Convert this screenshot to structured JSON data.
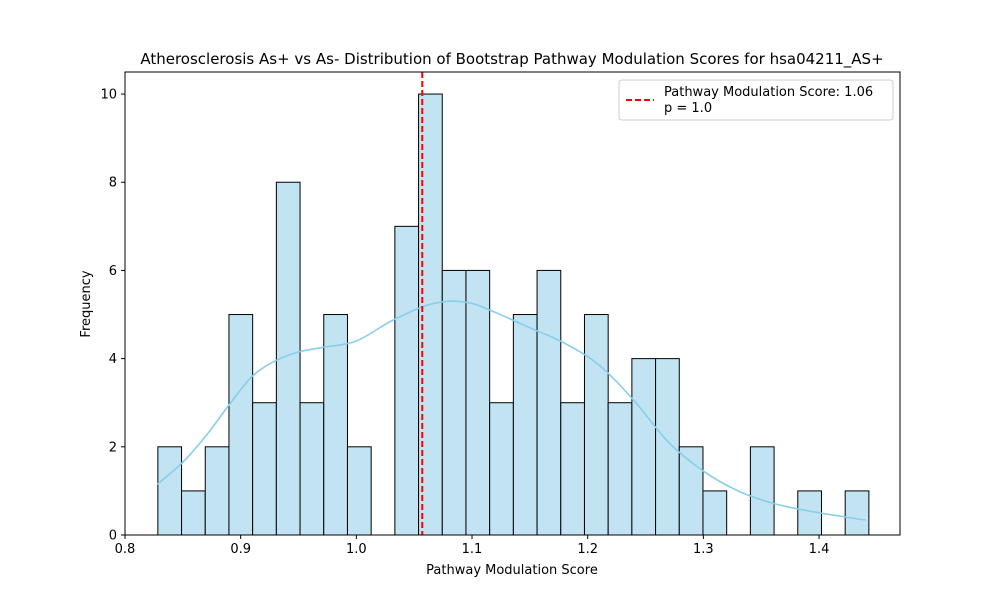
{
  "chart_data": {
    "type": "histogram",
    "title": "Atherosclerosis As+ vs As- Distribution of Bootstrap Pathway Modulation Scores for hsa04211_AS+",
    "xlabel": "Pathway Modulation Score",
    "ylabel": "Frequency",
    "xlim": [
      0.8,
      1.47
    ],
    "ylim": [
      0,
      10.5
    ],
    "x_ticks": [
      0.8,
      0.9,
      1.0,
      1.1,
      1.2,
      1.3,
      1.4
    ],
    "x_tick_labels": [
      "0.8",
      "0.9",
      "1.0",
      "1.1",
      "1.2",
      "1.3",
      "1.4"
    ],
    "y_ticks": [
      0,
      2,
      4,
      6,
      8,
      10
    ],
    "y_tick_labels": [
      "0",
      "2",
      "4",
      "6",
      "8",
      "10"
    ],
    "bin_start": 0.8284,
    "bin_width": 0.02049,
    "counts": [
      2,
      1,
      2,
      5,
      3,
      8,
      3,
      5,
      2,
      0,
      7,
      10,
      6,
      6,
      3,
      5,
      6,
      3,
      5,
      3,
      4,
      4,
      2,
      1,
      0,
      2,
      0,
      1,
      0,
      1
    ],
    "bar_color": "#c2e3f2",
    "bar_edge_color": "#000000",
    "kde": {
      "color": "#87ceeb",
      "x": [
        0.828,
        0.85,
        0.87,
        0.89,
        0.91,
        0.93,
        0.95,
        0.97,
        1.0,
        1.03,
        1.06,
        1.08,
        1.1,
        1.12,
        1.15,
        1.18,
        1.21,
        1.24,
        1.27,
        1.3,
        1.33,
        1.36,
        1.39,
        1.42,
        1.44
      ],
      "y": [
        1.15,
        1.65,
        2.25,
        2.95,
        3.6,
        3.95,
        4.15,
        4.25,
        4.4,
        4.85,
        5.2,
        5.3,
        5.25,
        5.05,
        4.7,
        4.35,
        3.85,
        3.05,
        2.1,
        1.45,
        1.0,
        0.72,
        0.55,
        0.42,
        0.34
      ]
    },
    "vline": {
      "x": 1.057,
      "color": "#ff0000",
      "style": "dashed"
    },
    "legend": {
      "placement": "top-right",
      "line1": "Pathway Modulation Score: 1.06",
      "line2": "p = 1.0"
    }
  }
}
